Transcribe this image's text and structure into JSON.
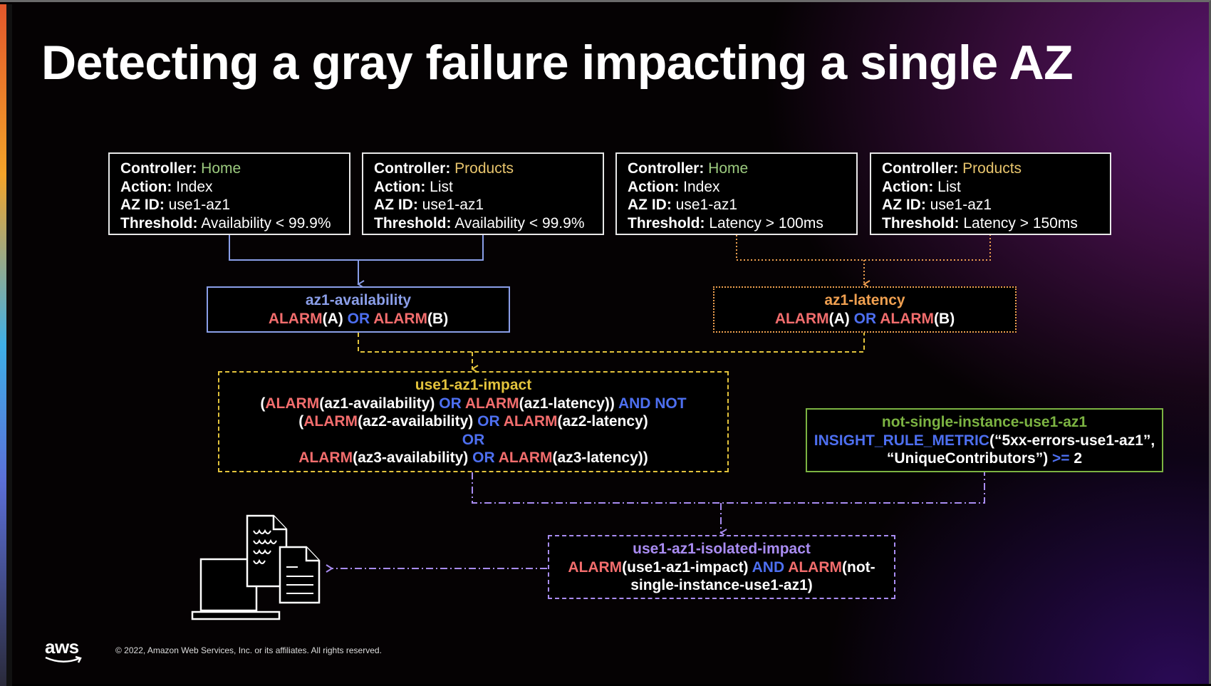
{
  "title": "Detecting a gray failure impacting a single AZ",
  "labels": {
    "controller": "Controller:",
    "action": "Action:",
    "az_id": "AZ ID:",
    "threshold": "Threshold:"
  },
  "sources": [
    {
      "controller": "Home",
      "action": "Index",
      "az_id": "use1-az1",
      "threshold": "Availability < 99.9%"
    },
    {
      "controller": "Products",
      "action": "List",
      "az_id": "use1-az1",
      "threshold": "Availability < 99.9%"
    },
    {
      "controller": "Home",
      "action": "Index",
      "az_id": "use1-az1",
      "threshold": "Latency > 100ms"
    },
    {
      "controller": "Products",
      "action": "List",
      "az_id": "use1-az1",
      "threshold": "Latency > 150ms"
    }
  ],
  "kw": {
    "alarm": "ALARM",
    "or": "OR",
    "and": "AND",
    "and_not": "AND NOT",
    "a": "(A)",
    "b": "(B)"
  },
  "availability": {
    "name": "az1-availability"
  },
  "latency": {
    "name": "az1-latency"
  },
  "impact": {
    "name": "use1-az1-impact",
    "p1": "(",
    "a1": "(az1-availability)",
    "a2": "(az1-latency))",
    "p2": "(",
    "b1": "(az2-availability)",
    "b2": "(az2-latency)",
    "c1": "(az3-availability)",
    "c2": "(az3-latency))"
  },
  "single": {
    "name": "not-single-instance-use1-az1",
    "fn": "INSIGHT_RULE_METRIC",
    "arg1": "(“5xx-errors-use1-az1”,",
    "arg2": "“UniqueContributors”)",
    "op": ">=",
    "val": "2"
  },
  "isolated": {
    "name": "use1-az1-isolated-impact",
    "a1": "(use1-az1-impact)",
    "a2": "(not-",
    "a3": "single-instance-use1-az1)"
  },
  "footer": {
    "logo": "aws",
    "copyright": "© 2022, Amazon Web Services, Inc. or its affiliates. All rights reserved."
  },
  "colors": {
    "red": "#f26d6d",
    "blue": "#4d6ff0",
    "avail": "#8a9ee8",
    "latency": "#f0a050",
    "impact": "#e3c33c",
    "single": "#7cb342",
    "isolated": "#a98cf2"
  }
}
